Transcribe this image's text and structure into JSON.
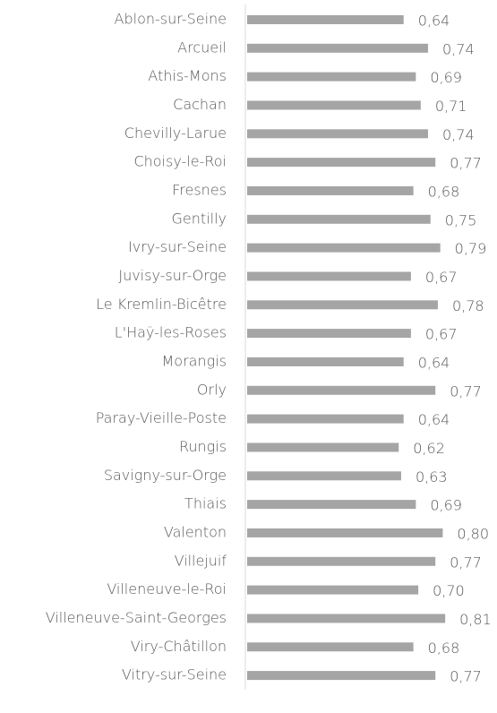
{
  "chart_data": {
    "type": "bar",
    "orientation": "horizontal",
    "categories": [
      "Ablon-sur-Seine",
      "Arcueil",
      "Athis-Mons",
      "Cachan",
      "Chevilly-Larue",
      "Choisy-le-Roi",
      "Fresnes",
      "Gentilly",
      "Ivry-sur-Seine",
      "Juvisy-sur-Orge",
      "Le Kremlin-Bicêtre",
      "L'Haÿ-les-Roses",
      "Morangis",
      "Orly",
      "Paray-Vieille-Poste",
      "Rungis",
      "Savigny-sur-Orge",
      "Thiais",
      "Valenton",
      "Villejuif",
      "Villeneuve-le-Roi",
      "Villeneuve-Saint-Georges",
      "Viry-Châtillon",
      "Vitry-sur-Seine"
    ],
    "values": [
      0.64,
      0.74,
      0.69,
      0.71,
      0.74,
      0.77,
      0.68,
      0.75,
      0.79,
      0.67,
      0.78,
      0.67,
      0.64,
      0.77,
      0.64,
      0.62,
      0.63,
      0.69,
      0.8,
      0.77,
      0.7,
      0.81,
      0.68,
      0.77
    ],
    "value_labels": [
      "0,64",
      "0,74",
      "0,69",
      "0,71",
      "0,74",
      "0,77",
      "0,68",
      "0,75",
      "0,79",
      "0,67",
      "0,78",
      "0,67",
      "0,64",
      "0,77",
      "0,64",
      "0,62",
      "0,63",
      "0,69",
      "0,80",
      "0,77",
      "0,70",
      "0,81",
      "0,68",
      "0,77"
    ],
    "color": "#a5a5a5",
    "xlim": [
      0,
      1
    ]
  }
}
